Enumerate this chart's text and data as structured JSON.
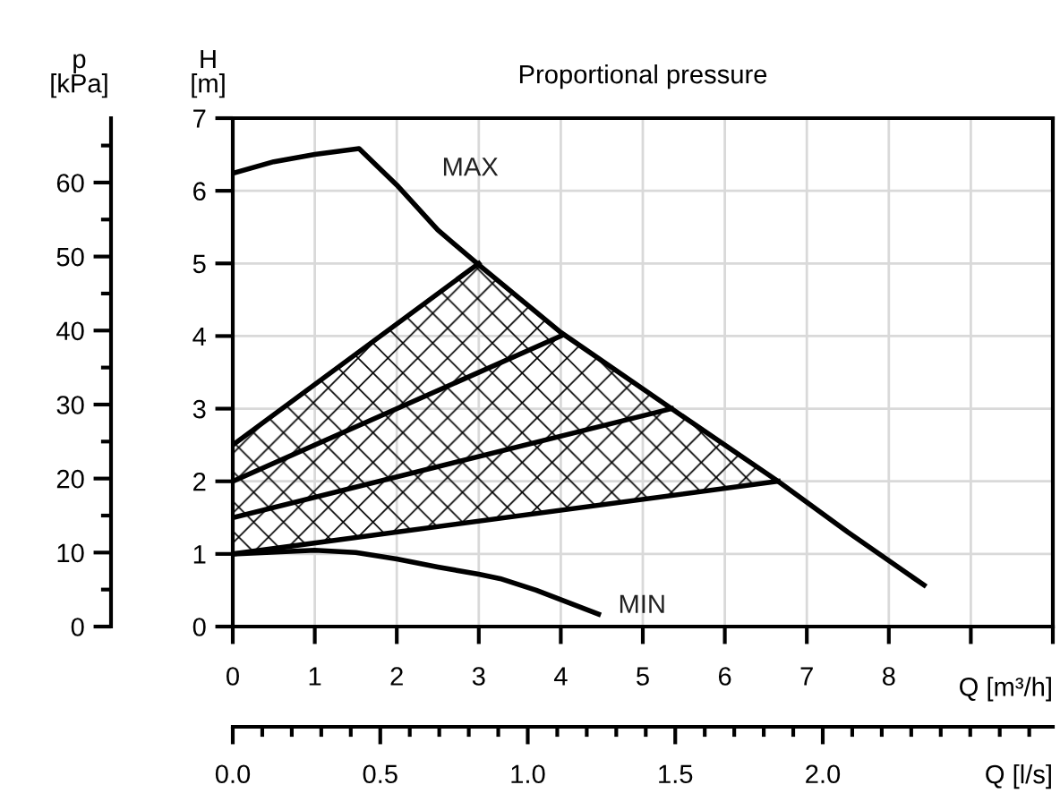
{
  "chart_data": {
    "type": "line",
    "title": "Proportional pressure",
    "xlabel": "Q [m³/h]",
    "ylabel": "H\n[m]",
    "y2label": "p\n[kPa]",
    "x2label": "Q [l/s]",
    "xlim": [
      0,
      10
    ],
    "xticks": [
      0,
      1,
      2,
      3,
      4,
      5,
      6,
      7,
      8,
      {
        "value": 9,
        "label": null
      },
      {
        "value": 10,
        "label": null
      }
    ],
    "ylim": [
      0,
      7
    ],
    "yticks": [
      0,
      1,
      2,
      3,
      4,
      5,
      6,
      7
    ],
    "y2lim": [
      0,
      68.7
    ],
    "y2ticks": [
      0,
      10,
      20,
      30,
      40,
      50,
      60
    ],
    "x2lim": [
      0,
      2.78
    ],
    "x2ticks": [
      {
        "value": 0,
        "label": "0.0"
      },
      0.5,
      {
        "value": 1,
        "label": "1.0"
      },
      1.5,
      {
        "value": 2,
        "label": "2.0"
      }
    ],
    "grid": true,
    "marker": "none",
    "line_style": "solid",
    "series": [
      {
        "color": "#000000",
        "x": [
          0,
          0.5,
          1,
          1.54,
          2,
          2.5,
          3,
          4,
          5.35,
          6.65,
          7.5,
          8.43
        ],
        "values": [
          6.24,
          6.4,
          6.5,
          6.58,
          6.08,
          5.46,
          4.98,
          4.05,
          3.0,
          2.0,
          1.3,
          0.57
        ]
      },
      {
        "color": "#000000",
        "x": [
          0,
          1,
          1.5,
          2,
          2.5,
          3,
          3.26,
          3.7,
          4.46
        ],
        "values": [
          1.0,
          1.05,
          1.02,
          0.93,
          0.82,
          0.72,
          0.66,
          0.5,
          0.17
        ]
      },
      {
        "color": "#000000",
        "x": [
          0,
          3
        ],
        "values": [
          2.5,
          5
        ]
      },
      {
        "color": "#000000",
        "x": [
          0,
          4.0
        ],
        "values": [
          2.0,
          4.0
        ]
      },
      {
        "color": "#000000",
        "x": [
          0,
          5.35
        ],
        "values": [
          1.5,
          3.0
        ]
      },
      {
        "color": "#000000",
        "x": [
          0,
          6.65
        ],
        "values": [
          1.0,
          2.0
        ]
      }
    ],
    "annotations": [
      "MAX",
      "MIN"
    ]
  }
}
